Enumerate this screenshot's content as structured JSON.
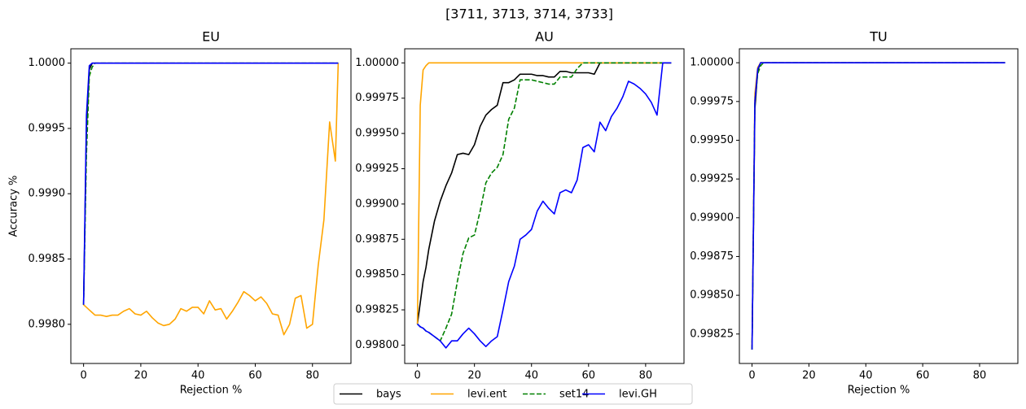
{
  "title": "[3711, 3713, 3714, 3733]",
  "legend": "lower center",
  "chart_data": [
    {
      "type": "line",
      "title": "EU",
      "xlabel": "Rejection %",
      "ylabel": "Accuracy %",
      "x": [
        0,
        1,
        2,
        3,
        4,
        6,
        8,
        10,
        12,
        14,
        16,
        18,
        20,
        22,
        24,
        26,
        28,
        30,
        32,
        34,
        36,
        38,
        40,
        42,
        44,
        46,
        48,
        50,
        52,
        54,
        56,
        58,
        60,
        62,
        64,
        66,
        68,
        70,
        72,
        74,
        76,
        78,
        80,
        82,
        84,
        86,
        88,
        89
      ],
      "series": [
        {
          "name": "bays",
          "color": "#000000",
          "values": [
            0.99815,
            0.9995,
            0.99995,
            1,
            1,
            1,
            1,
            1,
            1,
            1,
            1,
            1,
            1,
            1,
            1,
            1,
            1,
            1,
            1,
            1,
            1,
            1,
            1,
            1,
            1,
            1,
            1,
            1,
            1,
            1,
            1,
            1,
            1,
            1,
            1,
            1,
            1,
            1,
            1,
            1,
            1,
            1,
            1,
            1,
            1,
            1,
            1,
            1
          ]
        },
        {
          "name": "levi.ent",
          "color": "#ffa500",
          "values": [
            0.99815,
            0.99813,
            0.99811,
            0.99809,
            0.99807,
            0.99807,
            0.99806,
            0.99807,
            0.99807,
            0.9981,
            0.99812,
            0.99808,
            0.99807,
            0.9981,
            0.99805,
            0.99801,
            0.99799,
            0.998,
            0.99804,
            0.99812,
            0.9981,
            0.99813,
            0.99813,
            0.99808,
            0.99818,
            0.99811,
            0.99812,
            0.99804,
            0.9981,
            0.99817,
            0.99825,
            0.99822,
            0.99818,
            0.99821,
            0.99816,
            0.99808,
            0.99807,
            0.99792,
            0.998,
            0.9982,
            0.99822,
            0.99797,
            0.998,
            0.99845,
            0.9988,
            0.99955,
            0.99925,
            1
          ]
        },
        {
          "name": "set14",
          "color": "#008000",
          "linestyle": "dashed",
          "values": [
            0.99815,
            0.9993,
            0.9999,
            0.99997,
            1,
            1,
            1,
            1,
            1,
            1,
            1,
            1,
            1,
            1,
            1,
            1,
            1,
            1,
            1,
            1,
            1,
            1,
            1,
            1,
            1,
            1,
            1,
            1,
            1,
            1,
            1,
            1,
            1,
            1,
            1,
            1,
            1,
            1,
            1,
            1,
            1,
            1,
            1,
            1,
            1,
            1,
            1,
            1
          ]
        },
        {
          "name": "levi.GH",
          "color": "#0000ff",
          "values": [
            0.99815,
            0.9996,
            0.99998,
            1,
            1,
            1,
            1,
            1,
            1,
            1,
            1,
            1,
            1,
            1,
            1,
            1,
            1,
            1,
            1,
            1,
            1,
            1,
            1,
            1,
            1,
            1,
            1,
            1,
            1,
            1,
            1,
            1,
            1,
            1,
            1,
            1,
            1,
            1,
            1,
            1,
            1,
            1,
            1,
            1,
            1,
            1,
            1,
            1
          ]
        }
      ],
      "xlim": [
        -4.45,
        93.45
      ],
      "ylim": [
        0.9977,
        1.00011
      ],
      "xticks": [
        0,
        20,
        40,
        60,
        80
      ],
      "yticks": [
        {
          "value": 0.998,
          "label": "0.9980"
        },
        {
          "value": 0.9985,
          "label": "0.9985"
        },
        {
          "value": 0.999,
          "label": "0.9990"
        },
        {
          "value": 0.9995,
          "label": "0.9995"
        },
        {
          "value": 1,
          "label": "1.0000"
        }
      ]
    },
    {
      "type": "line",
      "title": "AU",
      "xlabel": "Rejection %",
      "x": [
        0,
        1,
        2,
        3,
        4,
        6,
        8,
        10,
        12,
        14,
        16,
        18,
        20,
        22,
        24,
        26,
        28,
        30,
        32,
        34,
        36,
        38,
        40,
        42,
        44,
        46,
        48,
        50,
        52,
        54,
        56,
        58,
        60,
        62,
        64,
        66,
        68,
        70,
        72,
        74,
        76,
        78,
        80,
        82,
        84,
        86,
        88,
        89
      ],
      "series": [
        {
          "name": "bays",
          "color": "#000000",
          "values": [
            0.99815,
            0.9983,
            0.99845,
            0.99855,
            0.99868,
            0.99888,
            0.99902,
            0.99913,
            0.99922,
            0.99935,
            0.99936,
            0.99935,
            0.99942,
            0.99955,
            0.99963,
            0.99967,
            0.9997,
            0.99986,
            0.99986,
            0.99988,
            0.99992,
            0.99992,
            0.99992,
            0.99991,
            0.99991,
            0.9999,
            0.9999,
            0.99994,
            0.99994,
            0.99993,
            0.99993,
            0.99993,
            0.99993,
            0.99992,
            1,
            1,
            1,
            1,
            1,
            1,
            1,
            1,
            1,
            1,
            1,
            1,
            1,
            1
          ]
        },
        {
          "name": "levi.ent",
          "color": "#ffa500",
          "values": [
            0.99815,
            0.9997,
            0.99995,
            0.99998,
            1,
            1,
            1,
            1,
            1,
            1,
            1,
            1,
            1,
            1,
            1,
            1,
            1,
            1,
            1,
            1,
            1,
            1,
            1,
            1,
            1,
            1,
            1,
            1,
            1,
            1,
            1,
            1,
            1,
            1,
            1,
            1,
            1,
            1,
            1,
            1,
            1,
            1,
            1,
            1,
            1,
            1,
            1,
            1
          ]
        },
        {
          "name": "set14",
          "color": "#008000",
          "linestyle": "dashed",
          "values": [
            0.99815,
            0.99813,
            0.99812,
            0.9981,
            0.99809,
            0.99806,
            0.99803,
            0.99812,
            0.99822,
            0.99845,
            0.99865,
            0.99876,
            0.99878,
            0.99895,
            0.99915,
            0.99922,
            0.99926,
            0.99935,
            0.9996,
            0.99968,
            0.99988,
            0.99988,
            0.99988,
            0.99987,
            0.99986,
            0.99985,
            0.99985,
            0.9999,
            0.9999,
            0.9999,
            0.99996,
            1,
            1,
            1,
            1,
            1,
            1,
            1,
            1,
            1,
            1,
            1,
            1,
            1,
            1,
            1,
            1,
            1
          ]
        },
        {
          "name": "levi.GH",
          "color": "#0000ff",
          "values": [
            0.99815,
            0.99813,
            0.99812,
            0.9981,
            0.99809,
            0.99806,
            0.99803,
            0.99798,
            0.99803,
            0.99803,
            0.99808,
            0.99812,
            0.99808,
            0.99803,
            0.99799,
            0.99803,
            0.99806,
            0.99825,
            0.99845,
            0.99856,
            0.99875,
            0.99878,
            0.99882,
            0.99895,
            0.99902,
            0.99897,
            0.99893,
            0.99908,
            0.9991,
            0.99908,
            0.99917,
            0.9994,
            0.99942,
            0.99937,
            0.99958,
            0.99952,
            0.99962,
            0.99968,
            0.99976,
            0.99987,
            0.99985,
            0.99982,
            0.99978,
            0.99972,
            0.99963,
            1,
            1,
            1
          ]
        }
      ],
      "xlim": [
        -4.45,
        93.45
      ],
      "ylim": [
        0.99787,
        1.0001
      ],
      "xticks": [
        0,
        20,
        40,
        60,
        80
      ],
      "yticks": [
        {
          "value": 0.998,
          "label": "0.99800"
        },
        {
          "value": 0.99825,
          "label": "0.99825"
        },
        {
          "value": 0.9985,
          "label": "0.99850"
        },
        {
          "value": 0.99875,
          "label": "0.99875"
        },
        {
          "value": 0.999,
          "label": "0.99900"
        },
        {
          "value": 0.99925,
          "label": "0.99925"
        },
        {
          "value": 0.9995,
          "label": "0.99950"
        },
        {
          "value": 0.99975,
          "label": "0.99975"
        },
        {
          "value": 1,
          "label": "1.00000"
        }
      ]
    },
    {
      "type": "line",
      "title": "TU",
      "xlabel": "Rejection %",
      "x": [
        0,
        1,
        2,
        3,
        4,
        6,
        8,
        10,
        12,
        14,
        16,
        18,
        20,
        22,
        24,
        26,
        28,
        30,
        32,
        34,
        36,
        38,
        40,
        42,
        44,
        46,
        48,
        50,
        52,
        54,
        56,
        58,
        60,
        62,
        64,
        66,
        68,
        70,
        72,
        74,
        76,
        78,
        80,
        82,
        84,
        86,
        88,
        89
      ],
      "series": [
        {
          "name": "bays",
          "color": "#000000",
          "values": [
            0.99815,
            0.9997,
            0.99995,
            1,
            1,
            1,
            1,
            1,
            1,
            1,
            1,
            1,
            1,
            1,
            1,
            1,
            1,
            1,
            1,
            1,
            1,
            1,
            1,
            1,
            1,
            1,
            1,
            1,
            1,
            1,
            1,
            1,
            1,
            1,
            1,
            1,
            1,
            1,
            1,
            1,
            1,
            1,
            1,
            1,
            1,
            1,
            1,
            1
          ]
        },
        {
          "name": "levi.ent",
          "color": "#ffa500",
          "values": [
            0.99815,
            0.9998,
            0.99997,
            1,
            1,
            1,
            1,
            1,
            1,
            1,
            1,
            1,
            1,
            1,
            1,
            1,
            1,
            1,
            1,
            1,
            1,
            1,
            1,
            1,
            1,
            1,
            1,
            1,
            1,
            1,
            1,
            1,
            1,
            1,
            1,
            1,
            1,
            1,
            1,
            1,
            1,
            1,
            1,
            1,
            1,
            1,
            1,
            1
          ]
        },
        {
          "name": "set14",
          "color": "#008000",
          "linestyle": "dashed",
          "values": [
            0.99815,
            0.99975,
            0.99993,
            0.99998,
            1,
            1,
            1,
            1,
            1,
            1,
            1,
            1,
            1,
            1,
            1,
            1,
            1,
            1,
            1,
            1,
            1,
            1,
            1,
            1,
            1,
            1,
            1,
            1,
            1,
            1,
            1,
            1,
            1,
            1,
            1,
            1,
            1,
            1,
            1,
            1,
            1,
            1,
            1,
            1,
            1,
            1,
            1,
            1
          ]
        },
        {
          "name": "levi.GH",
          "color": "#0000ff",
          "values": [
            0.99815,
            0.99975,
            0.99996,
            1,
            1,
            1,
            1,
            1,
            1,
            1,
            1,
            1,
            1,
            1,
            1,
            1,
            1,
            1,
            1,
            1,
            1,
            1,
            1,
            1,
            1,
            1,
            1,
            1,
            1,
            1,
            1,
            1,
            1,
            1,
            1,
            1,
            1,
            1,
            1,
            1,
            1,
            1,
            1,
            1,
            1,
            1,
            1,
            1
          ]
        }
      ],
      "xlim": [
        -4.45,
        93.45
      ],
      "ylim": [
        0.99806,
        1.00009
      ],
      "xticks": [
        0,
        20,
        40,
        60,
        80
      ],
      "yticks": [
        {
          "value": 0.99825,
          "label": "0.99825"
        },
        {
          "value": 0.9985,
          "label": "0.99850"
        },
        {
          "value": 0.99875,
          "label": "0.99875"
        },
        {
          "value": 0.999,
          "label": "0.99900"
        },
        {
          "value": 0.99925,
          "label": "0.99925"
        },
        {
          "value": 0.9995,
          "label": "0.99950"
        },
        {
          "value": 0.99975,
          "label": "0.99975"
        },
        {
          "value": 1,
          "label": "1.00000"
        }
      ]
    }
  ]
}
